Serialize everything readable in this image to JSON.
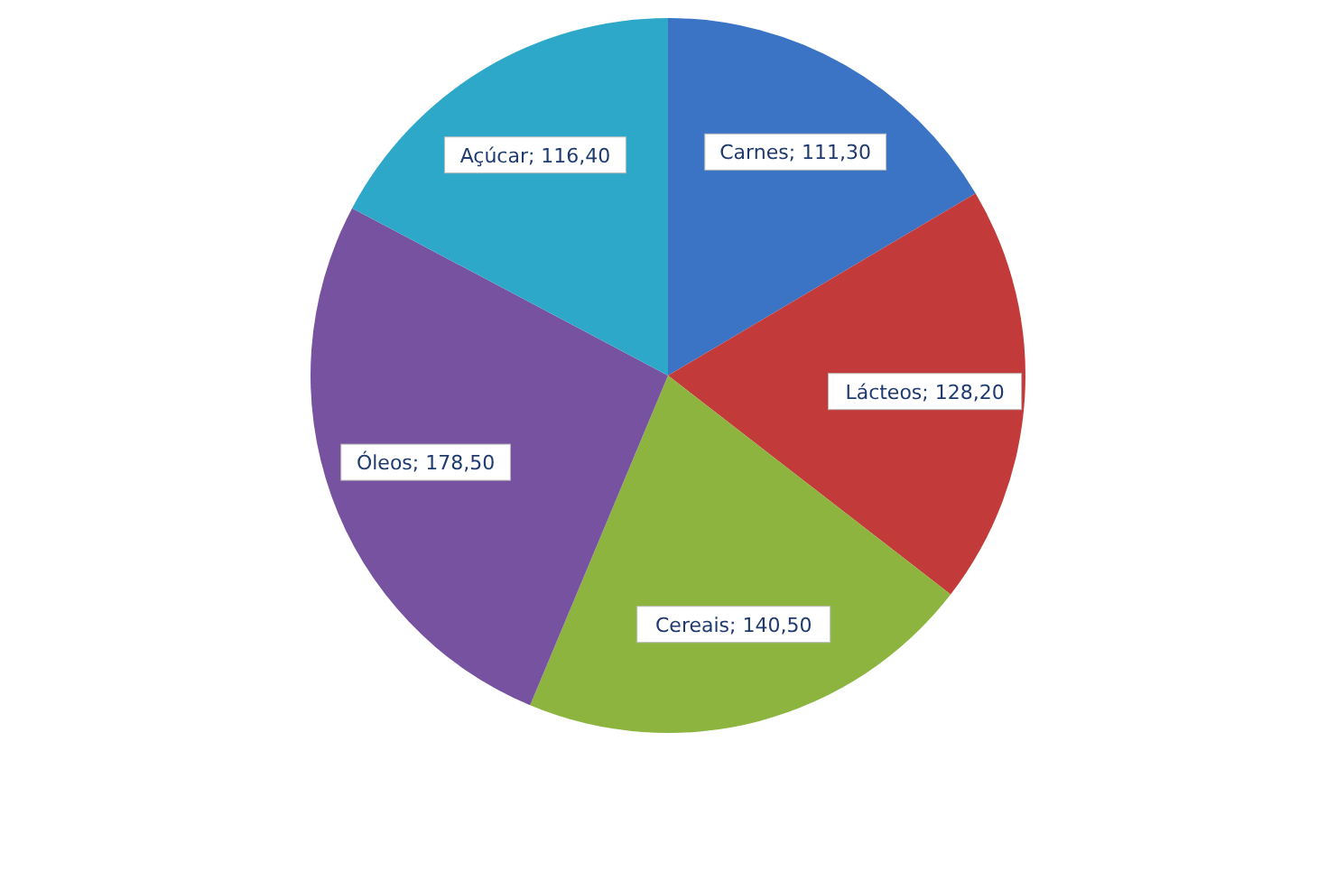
{
  "chart_data": {
    "type": "pie",
    "categories": [
      "Carnes",
      "Lácteos",
      "Cereais",
      "Óleos",
      "Açúcar"
    ],
    "values": [
      111.3,
      128.2,
      140.5,
      178.5,
      116.4
    ],
    "value_labels": [
      "111,30",
      "128,20",
      "140,50",
      "178,50",
      "116,40"
    ],
    "colors": [
      "#3b74c4",
      "#c23b3a",
      "#8cb43e",
      "#7652a0",
      "#2ea8c9"
    ]
  }
}
